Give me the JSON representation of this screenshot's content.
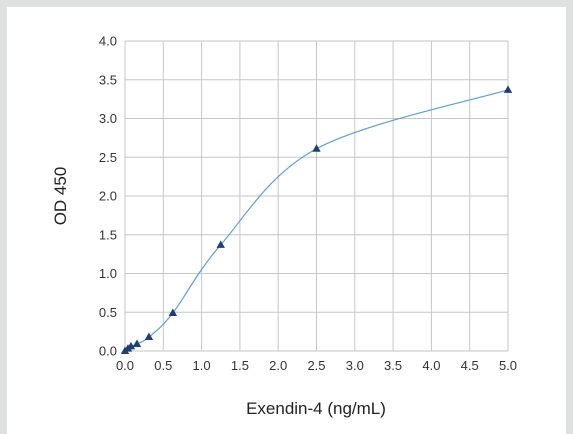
{
  "chart_data": {
    "type": "scatter",
    "xlabel": "Exendin-4 (ng/mL)",
    "ylabel": "OD 450",
    "xlim": [
      0,
      5
    ],
    "ylim": [
      0,
      4
    ],
    "x_ticks": [
      "0.0",
      "0.5",
      "1.0",
      "1.5",
      "2.0",
      "2.5",
      "3.0",
      "3.5",
      "4.0",
      "4.5",
      "5.0"
    ],
    "y_ticks": [
      "0.0",
      "0.5",
      "1.0",
      "1.5",
      "2.0",
      "2.5",
      "3.0",
      "3.5",
      "4.0"
    ],
    "grid": true,
    "series": [
      {
        "marker": "triangle",
        "color": "#1f3f73",
        "line_color": "#5aa0d8",
        "fit_line": "smooth",
        "x": [
          0,
          0.039,
          0.078,
          0.156,
          0.3125,
          0.625,
          1.25,
          2.5,
          5.0
        ],
        "y": [
          0.0,
          0.03,
          0.06,
          0.09,
          0.18,
          0.49,
          1.37,
          2.61,
          3.37
        ]
      }
    ]
  }
}
